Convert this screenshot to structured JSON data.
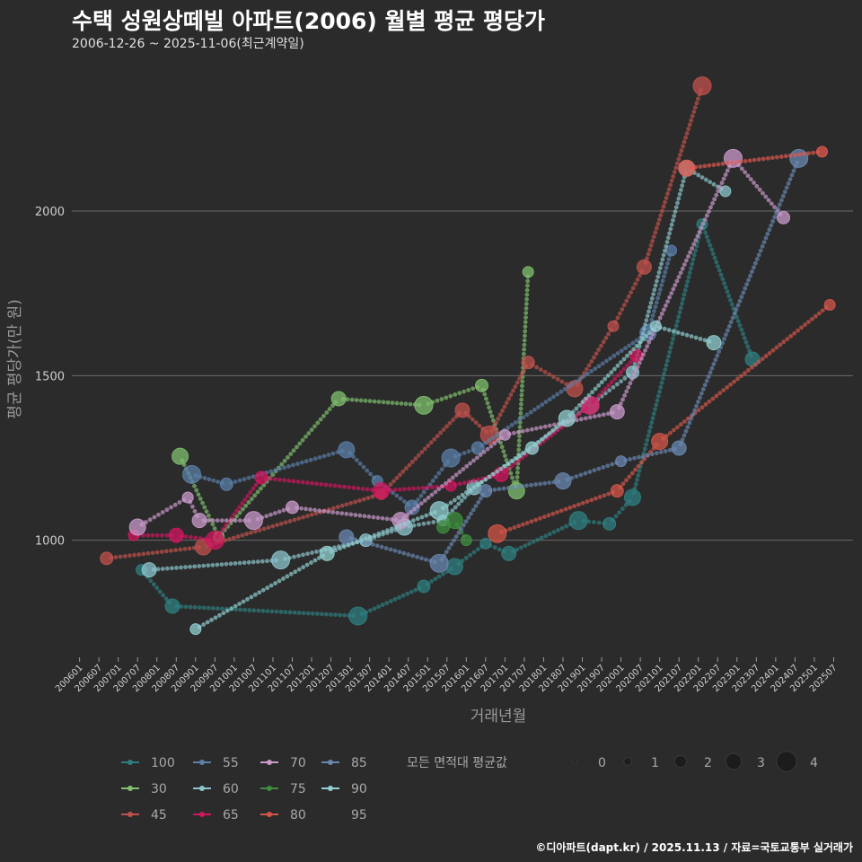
{
  "title": "수택 성원상떼빌 아파트(2006) 월별 평균 평당가",
  "subtitle": "2006-12-26 ~ 2025-11-06(최근계약일)",
  "footer": "©디아파트(dapt.kr) / 2025.11.13 / 자료=국토교통부 실거래가",
  "chart_data": {
    "type": "scatter",
    "xlabel": "거래년월",
    "ylabel": "평균 평당가(만 원)",
    "ylim": [
      650,
      2450
    ],
    "yticks": [
      1000,
      1500,
      2000
    ],
    "xticks": [
      "200601",
      "200607",
      "200701",
      "200707",
      "200801",
      "200807",
      "200901",
      "200907",
      "201001",
      "201007",
      "201101",
      "201107",
      "201201",
      "201207",
      "201301",
      "201307",
      "201401",
      "201407",
      "201501",
      "201507",
      "201601",
      "201607",
      "201701",
      "201707",
      "201801",
      "201807",
      "201901",
      "201907",
      "202001",
      "202007",
      "202101",
      "202107",
      "202201",
      "202207",
      "202301",
      "202307",
      "202401",
      "202407",
      "202501",
      "202507"
    ],
    "size_legend_title": "모든 면적대 평균값",
    "size_legend_values": [
      0,
      1,
      2,
      3,
      4
    ],
    "series": [
      {
        "name": "100",
        "color": "#2f7f80",
        "points": [
          [
            2007.6,
            910
          ],
          [
            2008.4,
            800
          ],
          [
            2013.2,
            770
          ],
          [
            2014.9,
            860
          ],
          [
            2015.7,
            920
          ],
          [
            2016.5,
            990
          ],
          [
            2017.1,
            960
          ],
          [
            2018.9,
            1060
          ],
          [
            2019.7,
            1050
          ],
          [
            2020.3,
            1130
          ],
          [
            2022.1,
            1960
          ],
          [
            2023.4,
            1550
          ]
        ]
      },
      {
        "name": "30",
        "color": "#7fbf6e",
        "points": [
          [
            2008.6,
            1255
          ],
          [
            2009.6,
            1010
          ],
          [
            2012.7,
            1430
          ],
          [
            2014.9,
            1410
          ],
          [
            2016.4,
            1470
          ],
          [
            2017.3,
            1150
          ],
          [
            2017.6,
            1815
          ]
        ]
      },
      {
        "name": "45",
        "color": "#c0524c",
        "points": [
          [
            2006.7,
            945
          ],
          [
            2009.2,
            980
          ],
          [
            2013.8,
            1140
          ],
          [
            2015.9,
            1395
          ],
          [
            2016.6,
            1320
          ],
          [
            2017.6,
            1540
          ],
          [
            2018.8,
            1460
          ],
          [
            2019.8,
            1650
          ],
          [
            2020.6,
            1830
          ],
          [
            2022.1,
            2380
          ]
        ]
      },
      {
        "name": "55",
        "color": "#5b7fa8",
        "points": [
          [
            2008.9,
            1200
          ],
          [
            2009.8,
            1170
          ],
          [
            2012.9,
            1275
          ],
          [
            2013.7,
            1180
          ],
          [
            2014.6,
            1100
          ],
          [
            2015.6,
            1250
          ],
          [
            2016.3,
            1280
          ],
          [
            2020.7,
            1630
          ],
          [
            2021.3,
            1880
          ]
        ]
      },
      {
        "name": "60",
        "color": "#8cc4cc",
        "points": [
          [
            2007.8,
            910
          ],
          [
            2011.2,
            940
          ],
          [
            2013.4,
            1000
          ],
          [
            2014.4,
            1040
          ],
          [
            2015.4,
            1060
          ],
          [
            2016.2,
            1160
          ],
          [
            2019.2,
            1410
          ],
          [
            2020.3,
            1510
          ],
          [
            2021.7,
            2130
          ],
          [
            2022.7,
            2060
          ]
        ]
      },
      {
        "name": "65",
        "color": "#d0175f",
        "points": [
          [
            2007.4,
            1015
          ],
          [
            2008.5,
            1015
          ],
          [
            2009.5,
            1000
          ],
          [
            2010.7,
            1190
          ],
          [
            2013.8,
            1150
          ],
          [
            2015.6,
            1165
          ],
          [
            2016.9,
            1200
          ],
          [
            2019.2,
            1410
          ],
          [
            2020.4,
            1560
          ]
        ]
      },
      {
        "name": "70",
        "color": "#c99acb",
        "points": [
          [
            2007.5,
            1040
          ],
          [
            2008.8,
            1130
          ],
          [
            2009.1,
            1060
          ],
          [
            2010.5,
            1060
          ],
          [
            2011.5,
            1100
          ],
          [
            2014.3,
            1060
          ],
          [
            2017.0,
            1320
          ],
          [
            2019.9,
            1390
          ],
          [
            2022.9,
            2160
          ],
          [
            2024.2,
            1980
          ]
        ]
      },
      {
        "name": "75",
        "color": "#3f8f3f",
        "points": [
          [
            2015.4,
            1040
          ],
          [
            2015.7,
            1060
          ],
          [
            2016.0,
            1000
          ]
        ]
      },
      {
        "name": "80",
        "color": "#d4564a",
        "points": [
          [
            2016.8,
            1020
          ],
          [
            2019.9,
            1150
          ],
          [
            2021.0,
            1300
          ],
          [
            2025.4,
            1715
          ]
        ]
      },
      {
        "name": "85",
        "color": "#6a87b0",
        "points": [
          [
            2012.9,
            1010
          ],
          [
            2015.3,
            930
          ],
          [
            2016.5,
            1150
          ],
          [
            2018.5,
            1180
          ],
          [
            2020.0,
            1240
          ],
          [
            2021.5,
            1280
          ],
          [
            2024.6,
            2160
          ]
        ]
      },
      {
        "name": "90",
        "color": "#92cfd0",
        "points": [
          [
            2009.0,
            730
          ],
          [
            2012.4,
            960
          ],
          [
            2015.3,
            1090
          ],
          [
            2017.7,
            1280
          ],
          [
            2018.6,
            1370
          ],
          [
            2020.9,
            1650
          ],
          [
            2022.4,
            1600
          ]
        ]
      },
      {
        "name": "95",
        "color": "#e0584e",
        "points": [
          [
            2021.7,
            2130
          ],
          [
            2025.2,
            2180
          ]
        ]
      }
    ]
  }
}
